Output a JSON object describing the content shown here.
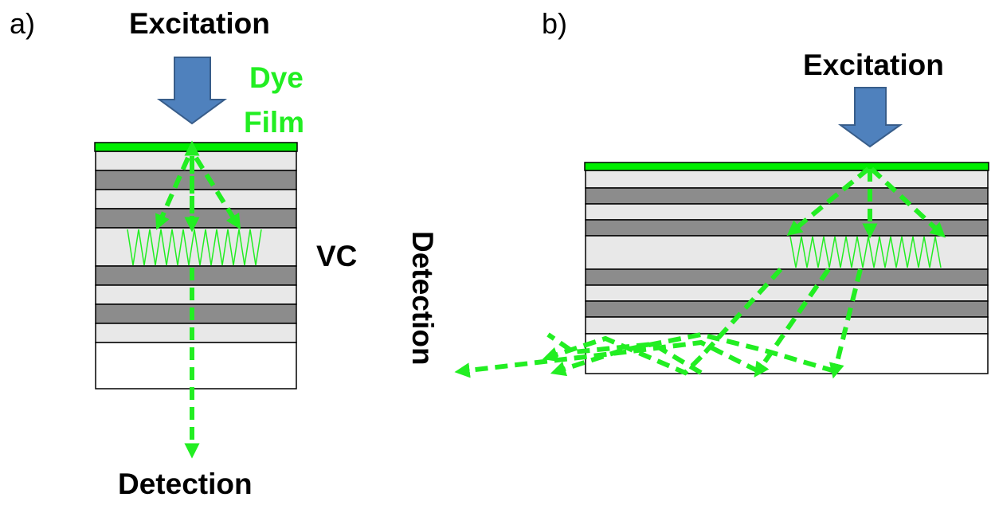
{
  "panel_a": {
    "tag": "a)",
    "excitation_label": "Excitation",
    "dye_label_line1": "Dye",
    "dye_label_line2": "Film",
    "vc_label": "VC",
    "detection_label": "Detection"
  },
  "panel_b": {
    "tag": "b)",
    "excitation_label": "Excitation",
    "detection_label": "Detection"
  },
  "colors": {
    "arrow_fill": "#4f81bd",
    "arrow_stroke": "#385d8a",
    "dye_film": "#00ee00",
    "light_path": "#22ee22",
    "layer_light": "#e8e8e8",
    "layer_dark": "#8c8c8c",
    "substrate": "#ffffff"
  }
}
